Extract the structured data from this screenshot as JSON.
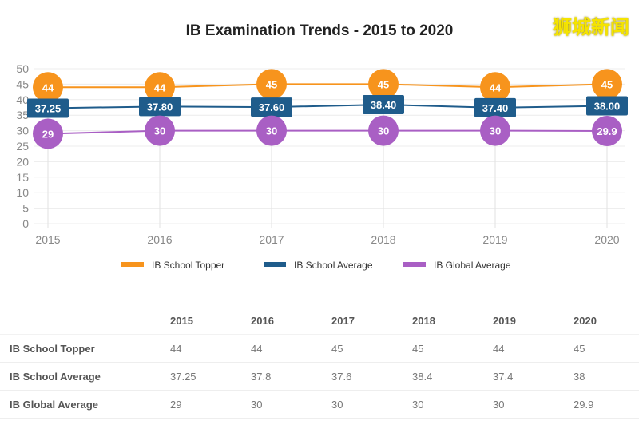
{
  "watermark": "狮城新闻",
  "chart_data": {
    "type": "line",
    "title": "IB Examination Trends  - 2015 to 2020",
    "categories": [
      "2015",
      "2016",
      "2017",
      "2018",
      "2019",
      "2020"
    ],
    "ylim": [
      0,
      50
    ],
    "yticks": [
      0,
      5,
      10,
      15,
      20,
      25,
      30,
      35,
      40,
      45,
      50
    ],
    "grid": true,
    "legend_position": "bottom",
    "series": [
      {
        "name": "IB School Topper",
        "color": "#f7941d",
        "marker": "circle",
        "values": [
          44,
          44,
          45,
          45,
          44,
          45
        ],
        "labels": [
          "44",
          "44",
          "45",
          "45",
          "44",
          "45"
        ]
      },
      {
        "name": "IB School Average",
        "color": "#1f5c8b",
        "marker": "box",
        "values": [
          37.25,
          37.8,
          37.6,
          38.4,
          37.4,
          38
        ],
        "labels": [
          "37.25",
          "37.80",
          "37.60",
          "38.40",
          "37.40",
          "38.00"
        ]
      },
      {
        "name": "IB Global Average",
        "color": "#a95fc4",
        "marker": "circle",
        "values": [
          29,
          30,
          30,
          30,
          30,
          29.9
        ],
        "labels": [
          "29",
          "30",
          "30",
          "30",
          "30",
          "29.9"
        ]
      }
    ]
  },
  "table": {
    "headers": [
      "",
      "2015",
      "2016",
      "2017",
      "2018",
      "2019",
      "2020"
    ],
    "rows": [
      {
        "label": "IB School Topper",
        "values": [
          "44",
          "44",
          "45",
          "45",
          "44",
          "45"
        ]
      },
      {
        "label": "IB School Average",
        "values": [
          "37.25",
          "37.8",
          "37.6",
          "38.4",
          "37.4",
          "38"
        ]
      },
      {
        "label": "IB Global Average",
        "values": [
          "29",
          "30",
          "30",
          "30",
          "30",
          "29.9"
        ]
      }
    ]
  }
}
